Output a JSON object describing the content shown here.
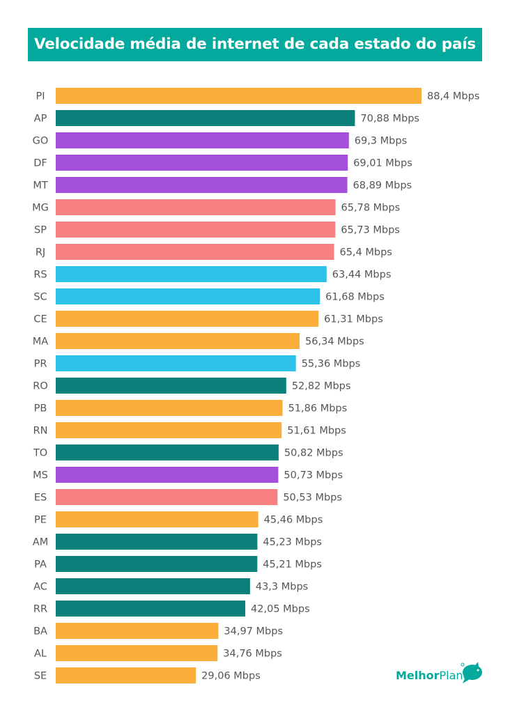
{
  "chart_data": {
    "type": "bar",
    "orientation": "horizontal",
    "title": "Velocidade média de internet de cada estado do país",
    "unit": "Mbps",
    "xlim": [
      -7.8,
      88.4
    ],
    "grid": false,
    "categories": [
      "PI",
      "AP",
      "GO",
      "DF",
      "MT",
      "MG",
      "SP",
      "RJ",
      "RS",
      "SC",
      "CE",
      "MA",
      "PR",
      "RO",
      "PB",
      "RN",
      "TO",
      "MS",
      "ES",
      "PE",
      "AM",
      "PA",
      "AC",
      "RR",
      "BA",
      "AL",
      "SE"
    ],
    "values": [
      88.4,
      70.88,
      69.3,
      69.01,
      68.89,
      65.78,
      65.73,
      65.4,
      63.44,
      61.68,
      61.31,
      56.34,
      55.36,
      52.82,
      51.86,
      51.61,
      50.82,
      50.73,
      50.53,
      45.46,
      45.23,
      45.21,
      43.3,
      42.05,
      34.97,
      34.76,
      29.06
    ],
    "value_labels": [
      "88,4 Mbps",
      "70,88 Mbps",
      "69,3 Mbps",
      "69,01 Mbps",
      "68,89 Mbps",
      "65,78 Mbps",
      "65,73 Mbps",
      "65,4 Mbps",
      "63,44 Mbps",
      "61,68 Mbps",
      "61,31 Mbps",
      "56,34 Mbps",
      "55,36 Mbps",
      "52,82 Mbps",
      "51,86 Mbps",
      "51,61 Mbps",
      "50,82 Mbps",
      "50,73 Mbps",
      "50,53 Mbps",
      "45,46 Mbps",
      "45,23 Mbps",
      "45,21 Mbps",
      "43,3 Mbps",
      "42,05 Mbps",
      "34,97 Mbps",
      "34,76 Mbps",
      "29,06 Mbps"
    ],
    "color_groups": [
      "orange",
      "teal",
      "purple",
      "purple",
      "purple",
      "salmon",
      "salmon",
      "salmon",
      "cyan",
      "cyan",
      "orange",
      "orange",
      "cyan",
      "teal",
      "orange",
      "orange",
      "teal",
      "purple",
      "salmon",
      "orange",
      "teal",
      "teal",
      "teal",
      "teal",
      "orange",
      "orange",
      "orange"
    ]
  },
  "colors": {
    "title_bg": "#03A99D",
    "orange": "#F9AE3B",
    "teal": "#0B7F7A",
    "purple": "#A44FDB",
    "salmon": "#F78180",
    "cyan": "#2BC1E8"
  },
  "logo": {
    "part1": "Melhor",
    "part2": "Plano"
  }
}
